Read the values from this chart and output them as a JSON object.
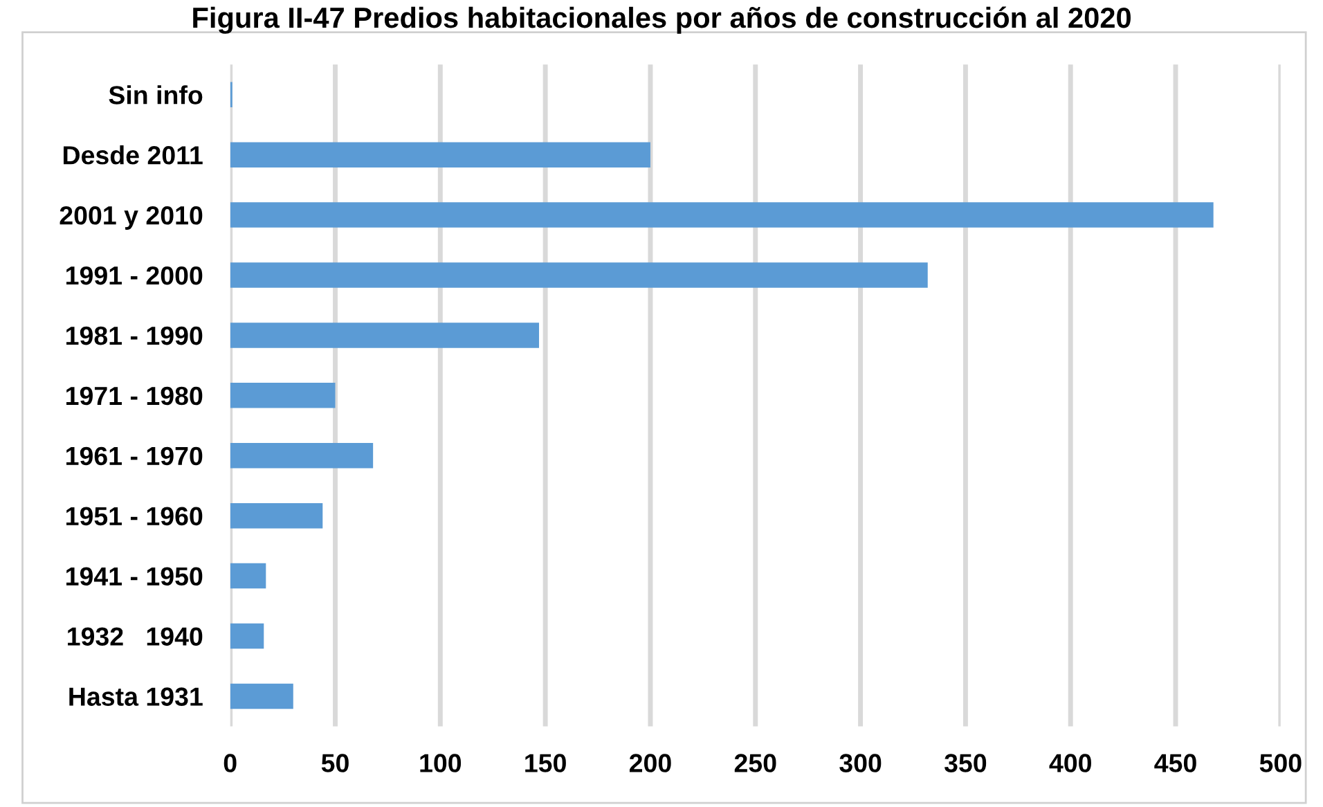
{
  "chart_data": {
    "type": "bar",
    "orientation": "horizontal",
    "title": "Figura II-47 Predios habitacionales por años de construcción al 2020",
    "categories": [
      "Sin info",
      "Desde 2011",
      "2001 y 2010",
      "1991 - 2000",
      "1981 - 1990",
      "1971 - 1980",
      "1961 - 1970",
      "1951 - 1960",
      "1941 - 1950",
      "1932   1940",
      "Hasta 1931"
    ],
    "values": [
      1,
      200,
      468,
      332,
      147,
      50,
      68,
      44,
      17,
      16,
      30
    ],
    "color": "#5b9bd5",
    "xlim": [
      0,
      500
    ],
    "xticks": [
      0,
      50,
      100,
      150,
      200,
      250,
      300,
      350,
      400,
      450,
      500
    ],
    "grid": "x"
  }
}
